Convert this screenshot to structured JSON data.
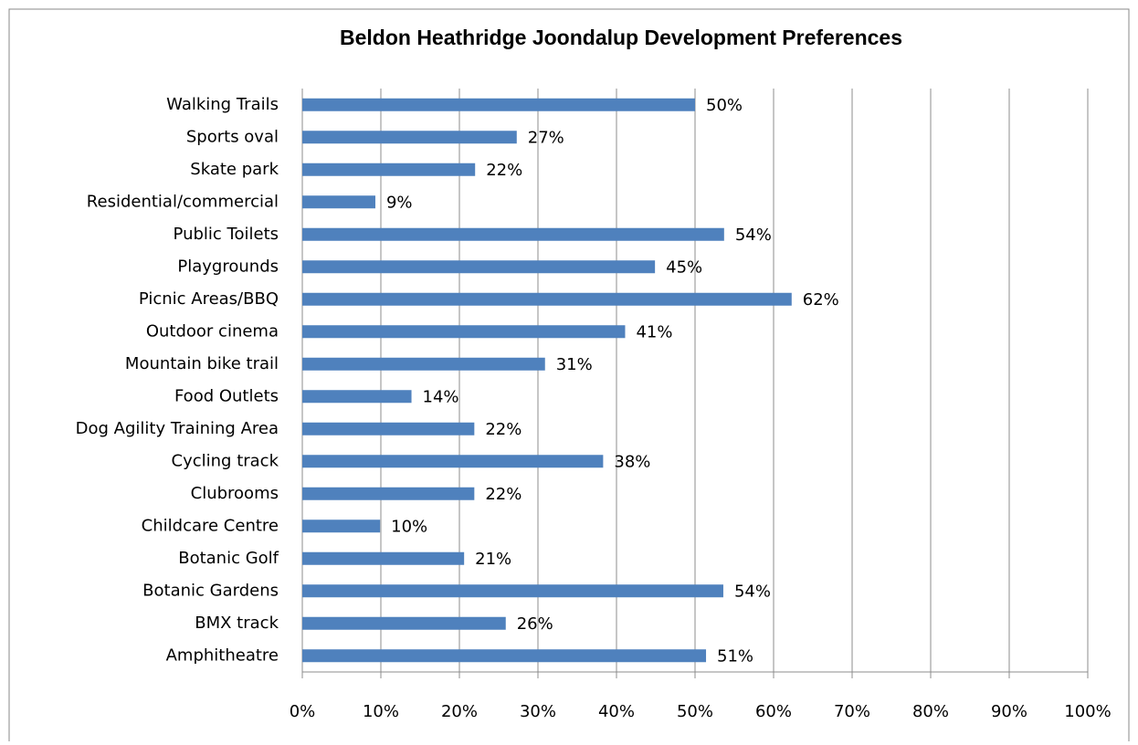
{
  "chart_data": {
    "type": "barh",
    "title": "Beldon Heathridge Joondalup Development Preferences",
    "categories": [
      "Walking Trails",
      "Sports oval",
      "Skate park",
      "Residential/commercial",
      "Public Toilets",
      "Playgrounds",
      "Picnic Areas/BBQ",
      "Outdoor cinema",
      "Mountain bike trail",
      "Food Outlets",
      "Dog Agility Training Area",
      "Cycling track",
      "Clubrooms",
      "Childcare Centre",
      "Botanic Golf",
      "Botanic Gardens",
      "BMX track",
      "Amphitheatre"
    ],
    "values": [
      50,
      27.3,
      22,
      9.3,
      53.7,
      44.9,
      62.3,
      41.1,
      30.9,
      13.9,
      21.9,
      38.3,
      21.9,
      9.9,
      20.6,
      53.6,
      25.9,
      51.4
    ],
    "value_labels": [
      "50%",
      "27%",
      "22%",
      "9%",
      "54%",
      "45%",
      "62%",
      "41%",
      "31%",
      "14%",
      "22%",
      "38%",
      "22%",
      "10%",
      "21%",
      "54%",
      "26%",
      "51%"
    ],
    "color": "#4f81bd",
    "xlim": [
      0,
      100
    ],
    "xticks": [
      {
        "value": 0,
        "label": "0%"
      },
      {
        "value": 10,
        "label": "10%"
      },
      {
        "value": 20,
        "label": "20%"
      },
      {
        "value": 30,
        "label": "30%"
      },
      {
        "value": 40,
        "label": "40%"
      },
      {
        "value": 50,
        "label": "50%"
      },
      {
        "value": 60,
        "label": "60%"
      },
      {
        "value": 70,
        "label": "70%"
      },
      {
        "value": 80,
        "label": "80%"
      },
      {
        "value": 90,
        "label": "90%"
      },
      {
        "value": 100,
        "label": "100%"
      }
    ],
    "grid": true
  }
}
